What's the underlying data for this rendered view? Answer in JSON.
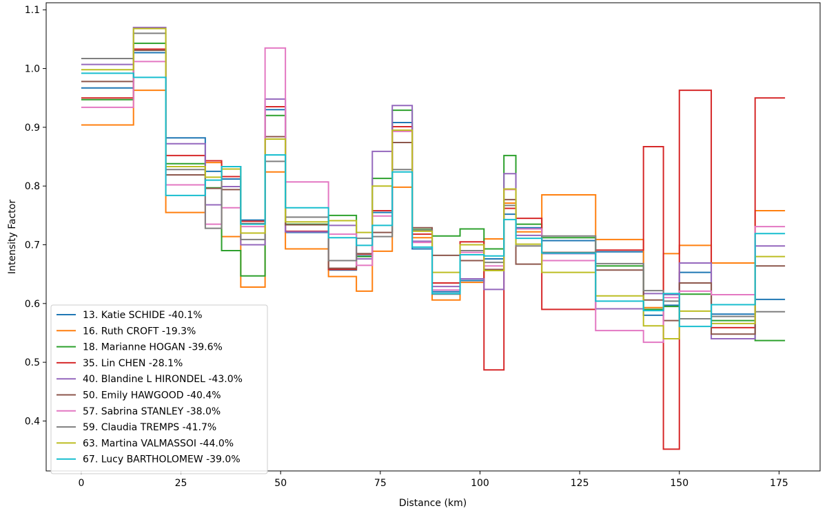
{
  "chart_data": {
    "type": "line",
    "step": true,
    "title": "",
    "xlabel": "Distance (km)",
    "ylabel": "Intensity Factor",
    "xlim": [
      -8.8,
      185.3
    ],
    "ylim": [
      0.315,
      1.112
    ],
    "xticks": [
      0,
      25,
      50,
      75,
      100,
      125,
      150,
      175
    ],
    "yticks": [
      0.4,
      0.5,
      0.6,
      0.7,
      0.8,
      0.9,
      1.0,
      1.1
    ],
    "ytick_labels": [
      "0.4",
      "0.5",
      "0.6",
      "0.7",
      "0.8",
      "0.9",
      "1.0",
      "1.1"
    ],
    "legend_position": "lower-left",
    "breakpoints": [
      0,
      13.1,
      21.2,
      31.1,
      35.2,
      40.0,
      46.1,
      51.2,
      62.0,
      69.0,
      73.0,
      78.0,
      83.0,
      88.0,
      95.0,
      101.0,
      106.0,
      109.0,
      115.5,
      129.0,
      141.0,
      146.0,
      150.0,
      158.0,
      169.0,
      176.5
    ],
    "series": [
      {
        "name": "13. Katie SCHIDE -40.1%",
        "color": "#1f77b4",
        "values": [
          0.967,
          1.027,
          0.882,
          0.825,
          0.812,
          0.742,
          0.93,
          0.721,
          0.657,
          0.681,
          0.755,
          0.908,
          0.693,
          0.62,
          0.639,
          0.676,
          0.752,
          0.729,
          0.707,
          0.688,
          0.58,
          0.597,
          0.653,
          0.582,
          0.607
        ]
      },
      {
        "name": "16. Ruth CROFT -19.3%",
        "color": "#ff7f0e",
        "values": [
          0.904,
          0.963,
          0.755,
          0.84,
          0.714,
          0.628,
          0.824,
          0.693,
          0.646,
          0.621,
          0.689,
          0.798,
          0.712,
          0.606,
          0.636,
          0.71,
          0.771,
          0.722,
          0.785,
          0.709,
          0.593,
          0.685,
          0.699,
          0.669,
          0.758
        ]
      },
      {
        "name": "18. Marianne HOGAN -39.6%",
        "color": "#2ca02c",
        "values": [
          0.947,
          1.043,
          0.838,
          0.797,
          0.69,
          0.647,
          0.92,
          0.735,
          0.75,
          0.68,
          0.813,
          0.929,
          0.726,
          0.715,
          0.727,
          0.693,
          0.852,
          0.735,
          0.712,
          0.664,
          0.59,
          0.595,
          0.616,
          0.571,
          0.537
        ]
      },
      {
        "name": "35. Lin CHEN -28.1%",
        "color": "#d62728",
        "values": [
          0.95,
          1.033,
          0.852,
          0.843,
          0.816,
          0.74,
          0.935,
          0.723,
          0.658,
          0.684,
          0.758,
          0.901,
          0.718,
          0.635,
          0.705,
          0.487,
          0.762,
          0.745,
          0.59,
          0.691,
          0.867,
          0.352,
          0.963,
          0.559,
          0.95
        ]
      },
      {
        "name": "40. Blandine L HIRONDEL -43.0%",
        "color": "#9467bd",
        "values": [
          1.007,
          1.07,
          0.872,
          0.768,
          0.799,
          0.7,
          0.948,
          0.722,
          0.733,
          0.676,
          0.859,
          0.937,
          0.706,
          0.629,
          0.642,
          0.624,
          0.821,
          0.716,
          0.685,
          0.591,
          0.617,
          0.615,
          0.669,
          0.54,
          0.698
        ]
      },
      {
        "name": "50. Emily HAWGOOD -40.4%",
        "color": "#8c564b",
        "values": [
          0.978,
          1.031,
          0.819,
          0.796,
          0.794,
          0.736,
          0.884,
          0.734,
          0.66,
          0.685,
          0.721,
          0.874,
          0.729,
          0.682,
          0.673,
          0.658,
          0.777,
          0.667,
          0.687,
          0.657,
          0.606,
          0.571,
          0.635,
          0.548,
          0.664
        ]
      },
      {
        "name": "57. Sabrina STANLEY -38.0%",
        "color": "#e377c2",
        "values": [
          0.934,
          1.012,
          0.802,
          0.735,
          0.763,
          0.731,
          1.035,
          0.807,
          0.718,
          0.665,
          0.749,
          0.893,
          0.704,
          0.623,
          0.687,
          0.664,
          0.794,
          0.727,
          0.673,
          0.554,
          0.534,
          0.61,
          0.621,
          0.615,
          0.731
        ]
      },
      {
        "name": "59. Claudia TREMPS -41.7%",
        "color": "#7f7f7f",
        "values": [
          1.017,
          1.06,
          0.828,
          0.728,
          0.833,
          0.709,
          0.842,
          0.747,
          0.673,
          0.711,
          0.714,
          0.828,
          0.725,
          0.616,
          0.69,
          0.67,
          0.767,
          0.698,
          0.715,
          0.668,
          0.622,
          0.604,
          0.574,
          0.578,
          0.586
        ]
      },
      {
        "name": "63. Martina VALMASSOI -44.0%",
        "color": "#bcbd22",
        "values": [
          0.998,
          1.068,
          0.833,
          0.815,
          0.829,
          0.72,
          0.88,
          0.739,
          0.741,
          0.721,
          0.8,
          0.895,
          0.723,
          0.653,
          0.7,
          0.656,
          0.795,
          0.701,
          0.653,
          0.613,
          0.562,
          0.54,
          0.587,
          0.566,
          0.68
        ]
      },
      {
        "name": "67. Lucy BARTHOLOMEW -39.0%",
        "color": "#17becf",
        "values": [
          0.992,
          0.985,
          0.784,
          0.81,
          0.833,
          0.735,
          0.853,
          0.763,
          0.712,
          0.699,
          0.733,
          0.824,
          0.696,
          0.617,
          0.683,
          0.681,
          0.743,
          0.711,
          0.686,
          0.604,
          0.588,
          0.617,
          0.561,
          0.598,
          0.719
        ]
      }
    ]
  }
}
